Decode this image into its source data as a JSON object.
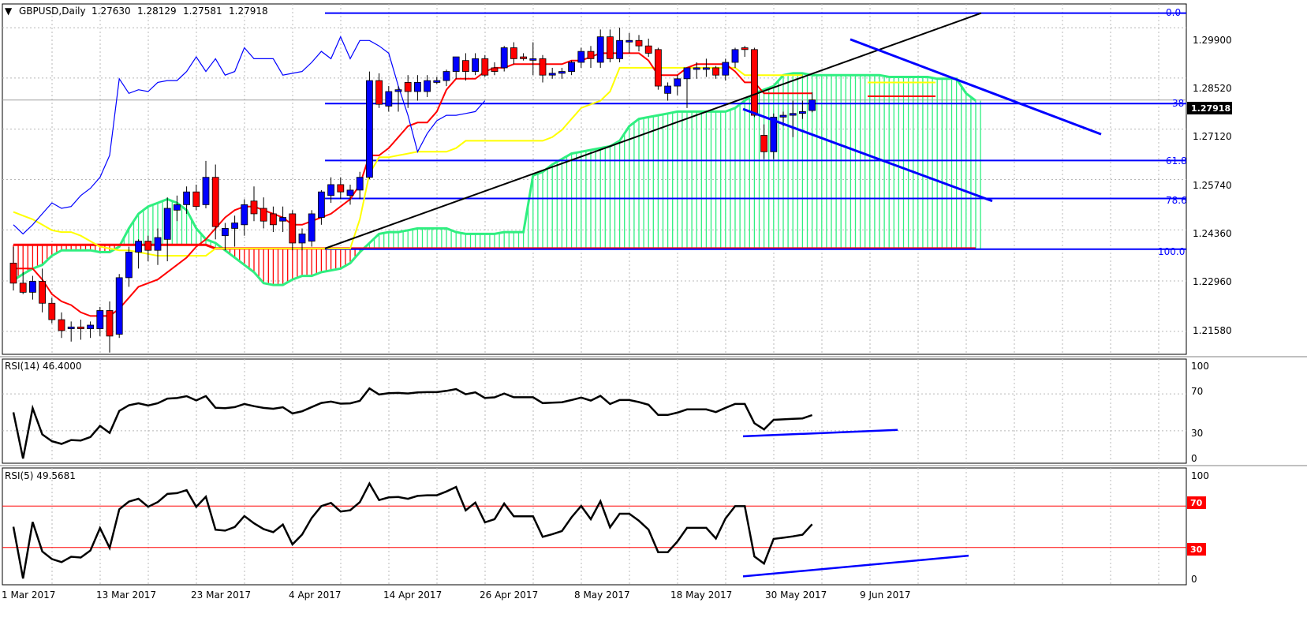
{
  "symbol_header": {
    "arrow": "▼",
    "label": "GBPUSD,Daily",
    "open": "1.27630",
    "high": "1.28129",
    "low": "1.27581",
    "close": "1.27918"
  },
  "price_axis": {
    "ticks": [
      "1.29900",
      "1.28520",
      "1.27120",
      "1.25740",
      "1.24360",
      "1.22960",
      "1.21580"
    ],
    "last_price": "1.27918"
  },
  "rsi14": {
    "title": "RSI(14) 46.4000",
    "levels": [
      "100",
      "70",
      "30",
      "0"
    ]
  },
  "rsi5": {
    "title": "RSI(5) 49.5681",
    "levels": [
      "100",
      "70",
      "30",
      "0"
    ]
  },
  "fib_labels": [
    "0.0",
    "38",
    "61.8",
    "78.6",
    "100.0"
  ],
  "date_labels": [
    "1 Mar 2017",
    "13 Mar 2017",
    "23 Mar 2017",
    "4 Apr 2017",
    "14 Apr 2017",
    "26 Apr 2017",
    "8 May 2017",
    "18 May 2017",
    "30 May 2017",
    "9 Jun 2017"
  ],
  "colors": {
    "bull_candle": "#0000ff",
    "bear_candle": "#ff0000",
    "tenkan": "#ff0000",
    "kijun": "#ffff00",
    "chikou": "#0000ff",
    "kumo_bull": "#2fef80",
    "kumo_bear": "#ff0000",
    "fib": "#0000ff",
    "trendline": "#000000",
    "rsi": "#000000",
    "rsi_level": "#ff0000",
    "divergence": "#0000ff"
  },
  "chart_data": {
    "type": "candlestick",
    "symbol": "GBPUSD",
    "timeframe": "Daily",
    "y_range": [
      1.2095,
      1.3055
    ],
    "candles": [
      [
        1.2345,
        1.239,
        1.227,
        1.229
      ],
      [
        1.229,
        1.232,
        1.226,
        1.2265
      ],
      [
        1.2265,
        1.231,
        1.2245,
        1.2295
      ],
      [
        1.2295,
        1.233,
        1.221,
        1.2235
      ],
      [
        1.2235,
        1.225,
        1.218,
        1.219
      ],
      [
        1.219,
        1.221,
        1.214,
        1.216
      ],
      [
        1.2165,
        1.2185,
        1.213,
        1.217
      ],
      [
        1.217,
        1.219,
        1.2135,
        1.2165
      ],
      [
        1.2165,
        1.2185,
        1.214,
        1.2175
      ],
      [
        1.2165,
        1.2225,
        1.2145,
        1.2215
      ],
      [
        1.2215,
        1.224,
        1.21,
        1.2145
      ],
      [
        1.215,
        1.2315,
        1.214,
        1.2305
      ],
      [
        1.2305,
        1.239,
        1.228,
        1.2375
      ],
      [
        1.2375,
        1.241,
        1.233,
        1.2405
      ],
      [
        1.2405,
        1.242,
        1.235,
        1.238
      ],
      [
        1.238,
        1.244,
        1.234,
        1.2415
      ],
      [
        1.241,
        1.2525,
        1.235,
        1.2495
      ],
      [
        1.249,
        1.253,
        1.246,
        1.2505
      ],
      [
        1.2505,
        1.2555,
        1.248,
        1.254
      ],
      [
        1.254,
        1.256,
        1.249,
        1.25
      ],
      [
        1.2505,
        1.2625,
        1.2495,
        1.258
      ],
      [
        1.258,
        1.2615,
        1.241,
        1.2445
      ],
      [
        1.242,
        1.2455,
        1.238,
        1.244
      ],
      [
        1.244,
        1.2475,
        1.239,
        1.2455
      ],
      [
        1.245,
        1.252,
        1.242,
        1.2505
      ],
      [
        1.2515,
        1.2555,
        1.246,
        1.248
      ],
      [
        1.2495,
        1.2525,
        1.244,
        1.246
      ],
      [
        1.248,
        1.25,
        1.243,
        1.245
      ],
      [
        1.246,
        1.25,
        1.243,
        1.247
      ],
      [
        1.248,
        1.249,
        1.238,
        1.24
      ],
      [
        1.24,
        1.244,
        1.238,
        1.2425
      ],
      [
        1.2405,
        1.249,
        1.239,
        1.248
      ],
      [
        1.247,
        1.2545,
        1.245,
        1.254
      ],
      [
        1.253,
        1.258,
        1.251,
        1.256
      ],
      [
        1.256,
        1.258,
        1.252,
        1.254
      ],
      [
        1.253,
        1.256,
        1.2505,
        1.2545
      ],
      [
        1.2545,
        1.2595,
        1.252,
        1.258
      ],
      [
        1.258,
        1.287,
        1.2575,
        1.2845
      ],
      [
        1.2845,
        1.2865,
        1.277,
        1.278
      ],
      [
        1.2775,
        1.283,
        1.276,
        1.2815
      ],
      [
        1.2815,
        1.283,
        1.276,
        1.282
      ],
      [
        1.284,
        1.286,
        1.277,
        1.2815
      ],
      [
        1.2815,
        1.286,
        1.279,
        1.284
      ],
      [
        1.2815,
        1.286,
        1.28,
        1.2845
      ],
      [
        1.284,
        1.2855,
        1.2835,
        1.2845
      ],
      [
        1.2845,
        1.2875,
        1.283,
        1.287
      ],
      [
        1.287,
        1.291,
        1.285,
        1.291
      ],
      [
        1.29,
        1.292,
        1.2845,
        1.287
      ],
      [
        1.287,
        1.292,
        1.286,
        1.2905
      ],
      [
        1.2905,
        1.2915,
        1.2855,
        1.286
      ],
      [
        1.288,
        1.2895,
        1.286,
        1.287
      ],
      [
        1.288,
        1.294,
        1.287,
        1.2935
      ],
      [
        1.2935,
        1.295,
        1.289,
        1.2905
      ],
      [
        1.291,
        1.292,
        1.29,
        1.2905
      ],
      [
        1.2905,
        1.295,
        1.286,
        1.2905
      ],
      [
        1.2905,
        1.2915,
        1.284,
        1.286
      ],
      [
        1.286,
        1.288,
        1.285,
        1.2865
      ],
      [
        1.2865,
        1.288,
        1.285,
        1.287
      ],
      [
        1.287,
        1.29,
        1.286,
        1.2895
      ],
      [
        1.2895,
        1.2935,
        1.288,
        1.2925
      ],
      [
        1.2925,
        1.294,
        1.288,
        1.2905
      ],
      [
        1.2895,
        1.2985,
        1.288,
        1.2965
      ],
      [
        1.2965,
        1.2985,
        1.2895,
        1.2905
      ],
      [
        1.2905,
        1.299,
        1.2895,
        1.2955
      ],
      [
        1.2955,
        1.2975,
        1.292,
        1.2955
      ],
      [
        1.2955,
        1.297,
        1.2925,
        1.294
      ],
      [
        1.294,
        1.296,
        1.291,
        1.292
      ],
      [
        1.293,
        1.2935,
        1.282,
        1.283
      ],
      [
        1.281,
        1.284,
        1.279,
        1.283
      ],
      [
        1.283,
        1.286,
        1.2805,
        1.285
      ],
      [
        1.285,
        1.288,
        1.277,
        1.288
      ],
      [
        1.288,
        1.2895,
        1.285,
        1.288
      ],
      [
        1.288,
        1.2905,
        1.2855,
        1.288
      ],
      [
        1.288,
        1.2885,
        1.285,
        1.286
      ],
      [
        1.286,
        1.2905,
        1.2845,
        1.2895
      ],
      [
        1.2895,
        1.2935,
        1.288,
        1.293
      ],
      [
        1.2935,
        1.294,
        1.291,
        1.293
      ],
      [
        1.293,
        1.2935,
        1.2745,
        1.275
      ],
      [
        1.2695,
        1.2725,
        1.263,
        1.265
      ],
      [
        1.265,
        1.2755,
        1.263,
        1.2745
      ],
      [
        1.2745,
        1.276,
        1.272,
        1.275
      ],
      [
        1.275,
        1.279,
        1.269,
        1.2755
      ],
      [
        1.2755,
        1.279,
        1.274,
        1.276
      ],
      [
        1.2763,
        1.2813,
        1.2758,
        1.2792
      ]
    ],
    "tenkan": [
      1.233,
      1.233,
      1.233,
      1.23,
      1.226,
      1.224,
      1.223,
      1.221,
      1.22,
      1.22,
      1.22,
      1.222,
      1.225,
      1.228,
      1.229,
      1.23,
      1.232,
      1.234,
      1.236,
      1.239,
      1.241,
      1.244,
      1.247,
      1.249,
      1.25,
      1.25,
      1.249,
      1.248,
      1.247,
      1.245,
      1.245,
      1.246,
      1.247,
      1.248,
      1.25,
      1.252,
      1.256,
      1.264,
      1.264,
      1.266,
      1.269,
      1.272,
      1.273,
      1.273,
      1.276,
      1.282,
      1.285,
      1.285,
      1.285,
      1.287,
      1.288,
      1.288,
      1.289,
      1.289,
      1.289,
      1.289,
      1.289,
      1.289,
      1.29,
      1.29,
      1.291,
      1.292,
      1.292,
      1.292,
      1.292,
      1.292,
      1.29,
      1.286,
      1.286,
      1.286,
      1.288,
      1.289,
      1.289,
      1.289,
      1.289,
      1.287,
      1.284,
      1.284,
      1.281,
      1.281,
      1.281,
      1.281,
      1.281,
      1.281
    ],
    "kijun": [
      1.2485,
      1.2475,
      1.2465,
      1.245,
      1.2435,
      1.243,
      1.243,
      1.242,
      1.2405,
      1.239,
      1.2385,
      1.238,
      1.238,
      1.2375,
      1.237,
      1.2365,
      1.2365,
      1.2365,
      1.2365,
      1.2365,
      1.2365,
      1.2385,
      1.2385,
      1.2385,
      1.2385,
      1.2385,
      1.2385,
      1.2385,
      1.2385,
      1.2385,
      1.2385,
      1.2385,
      1.2385,
      1.2385,
      1.2385,
      1.2385,
      1.2465,
      1.259,
      1.2635,
      1.2635,
      1.264,
      1.2645,
      1.265,
      1.265,
      1.265,
      1.265,
      1.266,
      1.268,
      1.268,
      1.268,
      1.268,
      1.268,
      1.268,
      1.268,
      1.268,
      1.268,
      1.269,
      1.271,
      1.274,
      1.277,
      1.278,
      1.279,
      1.2815,
      1.288,
      1.288,
      1.288,
      1.288,
      1.288,
      1.288,
      1.288,
      1.288,
      1.288,
      1.288,
      1.288,
      1.288,
      1.288,
      1.286,
      1.286,
      1.286,
      1.286,
      1.286,
      1.286,
      1.286
    ],
    "chikou": [
      1.245,
      1.2425,
      1.245,
      1.248,
      1.251,
      1.2495,
      1.25,
      1.253,
      1.255,
      1.258,
      1.264,
      1.285,
      1.281,
      1.282,
      1.2815,
      1.284,
      1.2845,
      1.2845,
      1.287,
      1.291,
      1.287,
      1.2905,
      1.286,
      1.287,
      1.2935,
      1.2905,
      1.2905,
      1.2905,
      1.286,
      1.2865,
      1.287,
      1.2895,
      1.2925,
      1.2905,
      1.2965,
      1.2905,
      1.2955,
      1.2955,
      1.294,
      1.292,
      1.283,
      1.275,
      1.265,
      1.27,
      1.2735,
      1.275,
      1.275,
      1.2755,
      1.276,
      1.279
    ],
    "senkou_a": [
      1.2298,
      1.2315,
      1.233,
      1.234,
      1.2365,
      1.238,
      1.238,
      1.238,
      1.238,
      1.2375,
      1.2375,
      1.239,
      1.244,
      1.248,
      1.25,
      1.251,
      1.252,
      1.251,
      1.249,
      1.244,
      1.241,
      1.24,
      1.238,
      1.236,
      1.234,
      1.232,
      1.229,
      1.2285,
      1.2285,
      1.23,
      1.231,
      1.231,
      1.232,
      1.2325,
      1.233,
      1.2345,
      1.2375,
      1.24,
      1.2425,
      1.243,
      1.243,
      1.2435,
      1.244,
      1.244,
      1.244,
      1.244,
      1.243,
      1.2425,
      1.2425,
      1.2425,
      1.2425,
      1.243,
      1.243,
      1.243,
      1.2585,
      1.2595,
      1.2615,
      1.263,
      1.2645,
      1.265,
      1.2655,
      1.266,
      1.2665,
      1.268,
      1.272,
      1.274,
      1.2745,
      1.275,
      1.2755,
      1.276,
      1.276,
      1.276,
      1.276,
      1.276,
      1.276,
      1.277,
      1.279,
      1.281,
      1.282,
      1.283,
      1.286,
      1.2865,
      1.2865,
      1.286,
      1.286,
      1.286,
      1.286,
      1.286,
      1.286,
      1.286,
      1.286,
      1.2855,
      1.2855,
      1.2855,
      1.2855,
      1.2855,
      1.285,
      1.285,
      1.285,
      1.281,
      1.279
    ],
    "senkou_b": [
      1.2395,
      1.2395,
      1.2395,
      1.2395,
      1.2395,
      1.2395,
      1.2395,
      1.2395,
      1.2395,
      1.2395,
      1.2395,
      1.2395,
      1.2395,
      1.2395,
      1.2395,
      1.2395,
      1.2395,
      1.2395,
      1.2395,
      1.2395,
      1.2395,
      1.2385,
      1.2385,
      1.2385,
      1.2385,
      1.2385,
      1.2385,
      1.2385,
      1.2385,
      1.2385,
      1.2385,
      1.2385,
      1.2385,
      1.2385,
      1.2385,
      1.2385,
      1.2385,
      1.2385,
      1.2385,
      1.2385,
      1.2385,
      1.2385,
      1.2385,
      1.2385,
      1.2385,
      1.2385,
      1.2385,
      1.2385,
      1.2385,
      1.2385,
      1.2385,
      1.2385,
      1.2385,
      1.2385,
      1.2385,
      1.2385,
      1.2385,
      1.2385,
      1.2385,
      1.2385,
      1.2385,
      1.2385,
      1.2385,
      1.2385,
      1.2385,
      1.2385,
      1.2385,
      1.2385,
      1.2385,
      1.2385,
      1.2385,
      1.2385,
      1.2385,
      1.2385,
      1.2385,
      1.2385,
      1.2385,
      1.2385,
      1.2385,
      1.2385,
      1.2385,
      1.2385,
      1.2385,
      1.2385,
      1.2385,
      1.2385,
      1.2385,
      1.2385,
      1.2385,
      1.2385,
      1.2385,
      1.2385,
      1.2385,
      1.2385,
      1.2385,
      1.2385,
      1.2385,
      1.2385,
      1.2385,
      1.2385,
      1.2385
    ]
  }
}
